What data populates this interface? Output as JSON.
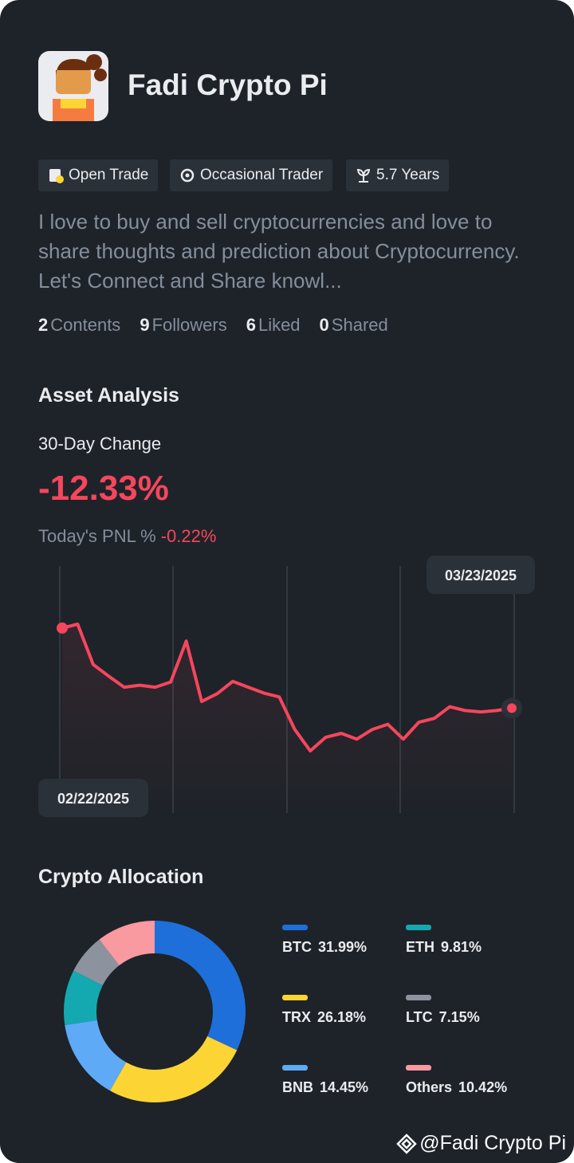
{
  "profile": {
    "name": "Fadi Crypto Pi",
    "tags": [
      "Open Trade",
      "Occasional Trader",
      "5.7 Years"
    ],
    "bio": "I love to buy and sell cryptocurrencies and love to share thoughts and prediction about Cryptocurrency. Let's Connect and Share knowl...",
    "stats": [
      {
        "value": 2,
        "label": "Contents"
      },
      {
        "value": 9,
        "label": "Followers"
      },
      {
        "value": 6,
        "label": "Liked"
      },
      {
        "value": 0,
        "label": "Shared"
      }
    ]
  },
  "asset_analysis": {
    "title": "Asset Analysis",
    "change_label": "30-Day Change",
    "change": "-12.33%",
    "pnl_label": "Today's PNL %",
    "pnl": "-0.22%"
  },
  "allocation": {
    "title": "Crypto Allocation"
  },
  "chart_data": [
    {
      "type": "line",
      "color": "#f6465d",
      "categories": [
        "02/22/2025",
        null,
        null,
        null,
        null,
        null,
        null,
        null,
        null,
        null,
        null,
        null,
        null,
        null,
        null,
        null,
        null,
        null,
        null,
        null,
        null,
        null,
        null,
        null,
        null,
        null,
        null,
        null,
        null,
        "03/23/2025"
      ],
      "values": [
        0,
        0.6,
        -5.6,
        -7.4,
        -9.1,
        -8.8,
        -9.1,
        -8.3,
        -2.0,
        -11.3,
        -10.1,
        -8.2,
        -9.1,
        -10.0,
        -10.6,
        -15.6,
        -18.9,
        -16.8,
        -16.2,
        -17.1,
        -15.6,
        -14.8,
        -17.1,
        -14.5,
        -13.9,
        -12.1,
        -12.7,
        -12.9,
        -12.7,
        -12.33
      ]
    },
    {
      "type": "pie",
      "categories": [
        "BTC",
        "TRX",
        "BNB",
        "ETH",
        "LTC",
        "Others"
      ],
      "values": [
        31.99,
        26.18,
        14.45,
        9.81,
        7.15,
        10.42
      ],
      "value_labels": [
        "31.99%",
        "26.18%",
        "14.45%",
        "9.81%",
        "7.15%",
        "10.42%"
      ],
      "colors": [
        "#1e6fd9",
        "#fcd535",
        "#5eaaf7",
        "#14a9b0",
        "#8d939e",
        "#f99aa0"
      ]
    }
  ],
  "footer": {
    "watermark": "@Fadi Crypto Pi"
  }
}
